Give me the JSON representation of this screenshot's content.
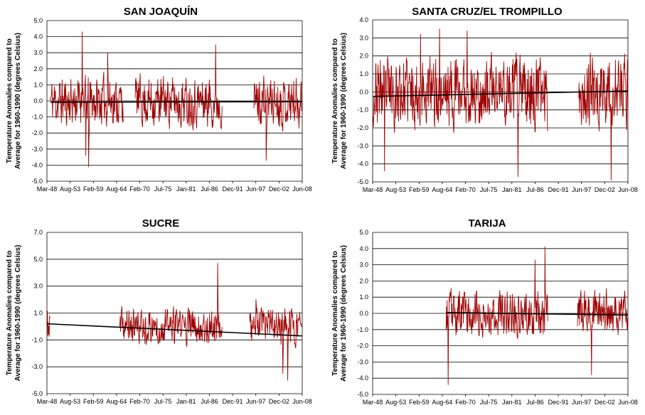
{
  "ylabel_line1": "Temperature Anomalies compared to",
  "ylabel_line2": "Average for 1960-1990 (degrees Celsius)",
  "series_color": "#a00000",
  "trend_color": "#000000",
  "chart_data": [
    {
      "type": "line",
      "title": "SAN JOAQUÍN",
      "ylim": [
        -5.0,
        5.0
      ],
      "yticks": [
        "5.0",
        "4.0",
        "3.0",
        "2.0",
        "1.0",
        "0.0",
        "-1.0",
        "-2.0",
        "-3.0",
        "-4.0",
        "-5.0"
      ],
      "xticks": [
        "Mar-48",
        "Aug-53",
        "Feb-59",
        "Aug-64",
        "Feb-70",
        "Jul-75",
        "Jan-81",
        "Jul-86",
        "Dec-91",
        "Jun-97",
        "Dec-02",
        "Jun-08"
      ],
      "xlim_years": [
        1948.17,
        2008.42
      ],
      "segments": [
        [
          1949.0,
          1966.2
        ],
        [
          1969.0,
          1989.5
        ],
        [
          1997.0,
          2008.4
        ]
      ],
      "amplitude": 1.1,
      "seed": 11,
      "spikes": [
        [
          1956.5,
          4.3
        ],
        [
          1958.0,
          -4.1
        ],
        [
          1957.3,
          -3.4
        ],
        [
          1988.0,
          3.5
        ],
        [
          1999.9,
          -3.7
        ],
        [
          1962.5,
          3.0
        ]
      ],
      "trend": [
        [
          1949.0,
          -0.08
        ],
        [
          2008.4,
          -0.05
        ]
      ]
    },
    {
      "type": "line",
      "title": "SANTA CRUZ/EL TROMPILLO",
      "ylim": [
        -5.0,
        4.0
      ],
      "yticks": [
        "4.0",
        "3.0",
        "2.0",
        "1.0",
        "0.0",
        "-1.0",
        "-2.0",
        "-3.0",
        "-4.0",
        "-5.0"
      ],
      "xticks": [
        "Mar-48",
        "Aug-53",
        "Feb-59",
        "Aug-64",
        "Feb-70",
        "Jul-75",
        "Jan-81",
        "Jul-86",
        "Dec-91",
        "Jun-97",
        "Dec-02",
        "Jun-08"
      ],
      "xlim_years": [
        1948.17,
        2008.42
      ],
      "segments": [
        [
          1948.3,
          1989.5
        ],
        [
          1996.8,
          2008.4
        ]
      ],
      "amplitude": 1.4,
      "seed": 23,
      "spikes": [
        [
          1951.0,
          -4.4
        ],
        [
          1982.5,
          -4.7
        ],
        [
          2004.5,
          -4.9
        ],
        [
          1964.0,
          3.5
        ],
        [
          1970.5,
          3.4
        ],
        [
          1959.5,
          3.2
        ]
      ],
      "trend": [
        [
          1948.3,
          -0.25
        ],
        [
          2008.4,
          0.05
        ]
      ]
    },
    {
      "type": "line",
      "title": "SUCRE",
      "ylim": [
        -5.0,
        7.0
      ],
      "yticks": [
        "7.0",
        "5.0",
        "3.0",
        "1.0",
        "-1.0",
        "-3.0",
        "-5.0"
      ],
      "xticks": [
        "Mar-48",
        "Aug-53",
        "Feb-59",
        "Aug-64",
        "Feb-70",
        "Jul-75",
        "Jan-81",
        "Jul-86",
        "Dec-91",
        "Jun-97",
        "Dec-02",
        "Jun-08"
      ],
      "xlim_years": [
        1948.17,
        2008.42
      ],
      "segments": [
        [
          1948.2,
          1948.9
        ],
        [
          1965.3,
          1989.5
        ],
        [
          1996.0,
          2008.4
        ]
      ],
      "amplitude": 0.95,
      "seed": 37,
      "spikes": [
        [
          1988.5,
          4.7
        ],
        [
          2005.0,
          -4.0
        ],
        [
          1997.5,
          2.0
        ],
        [
          2003.8,
          -3.5
        ]
      ],
      "trend": [
        [
          1948.2,
          0.2
        ],
        [
          2008.4,
          -0.7
        ]
      ]
    },
    {
      "type": "line",
      "title": "TARIJA",
      "ylim": [
        -5.0,
        5.0
      ],
      "yticks": [
        "5.0",
        "4.0",
        "3.0",
        "2.0",
        "1.0",
        "0.0",
        "-1.0",
        "-2.0",
        "-3.0",
        "-4.0",
        "-5.0"
      ],
      "xticks": [
        "Mar-48",
        "Aug-53",
        "Feb-59",
        "Aug-64",
        "Feb-70",
        "Jul-75",
        "Jan-81",
        "Jul-86",
        "Dec-91",
        "Jun-97",
        "Dec-02",
        "Jun-08"
      ],
      "xlim_years": [
        1948.17,
        2008.42
      ],
      "segments": [
        [
          1965.5,
          1989.5
        ],
        [
          1996.5,
          2008.4
        ]
      ],
      "amplitude": 1.0,
      "seed": 53,
      "spikes": [
        [
          1966.0,
          -4.4
        ],
        [
          1988.8,
          4.1
        ],
        [
          1999.8,
          -3.8
        ],
        [
          1986.5,
          3.3
        ]
      ],
      "trend": [
        [
          1965.5,
          0.05
        ],
        [
          2008.4,
          -0.1
        ]
      ]
    }
  ]
}
